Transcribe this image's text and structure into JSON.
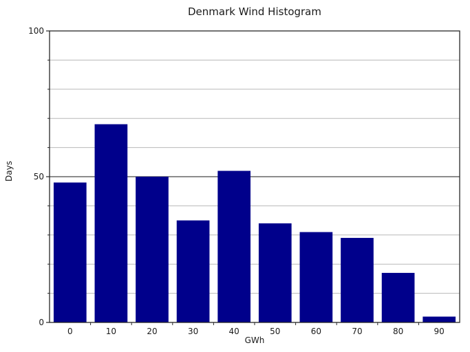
{
  "chart_data": {
    "type": "bar",
    "title": "Denmark Wind Histogram",
    "xlabel": "GWh",
    "ylabel": "Days",
    "categories": [
      "0",
      "10",
      "20",
      "30",
      "40",
      "50",
      "60",
      "70",
      "80",
      "90"
    ],
    "values": [
      48,
      68,
      50,
      35,
      52,
      34,
      31,
      29,
      17,
      2
    ],
    "ylim": [
      0,
      100
    ],
    "y_major_ticks": [
      0,
      50,
      100
    ],
    "y_minor_step": 10,
    "grid": "horizontal, minor every 10, major at 50",
    "legend_position": "none",
    "bar_color": "#00008B",
    "grid_minor_color": "#b8b8b8",
    "grid_major_color": "#666666",
    "frame_color": "#262626",
    "text_color": "#1a1a1a",
    "background_color": "#ffffff"
  }
}
